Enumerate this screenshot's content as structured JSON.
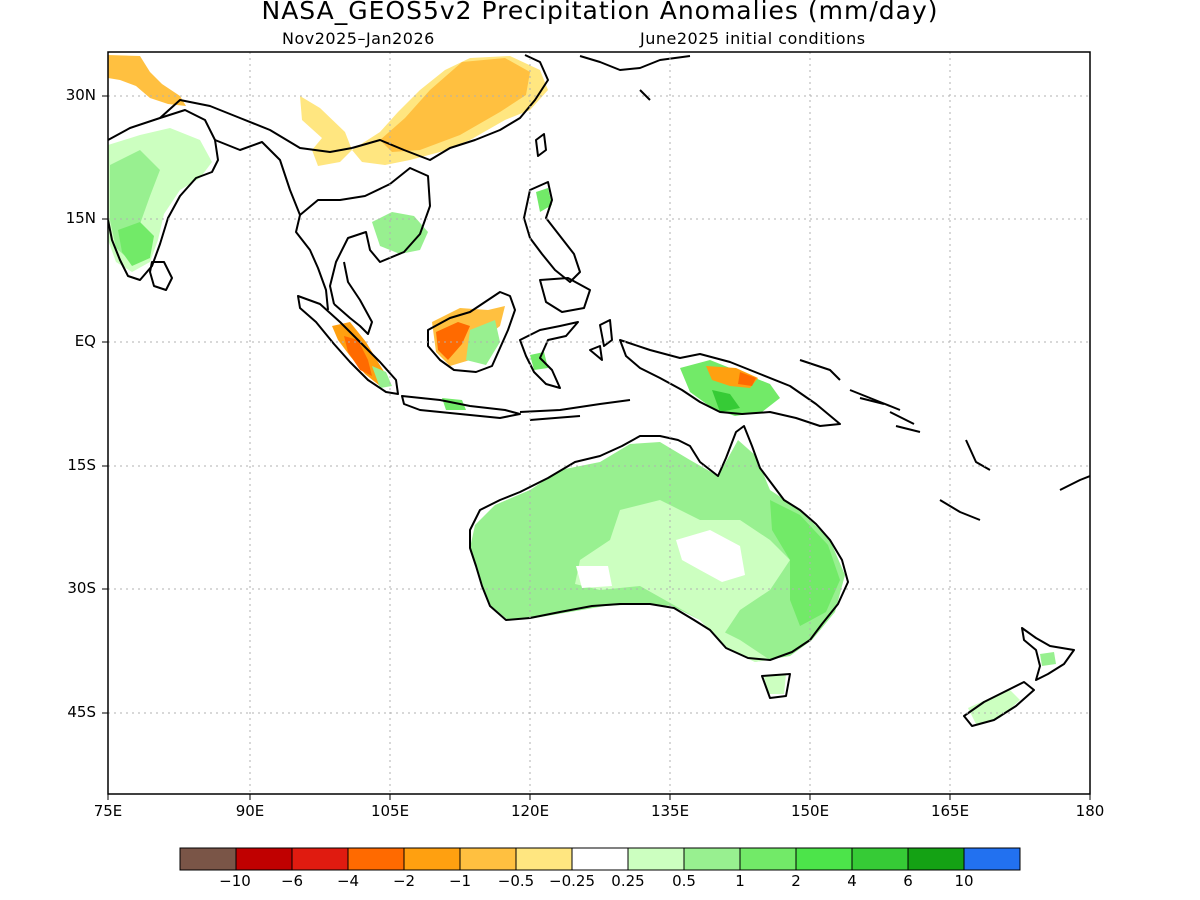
{
  "title": "NASA_GEOS5v2 Precipitation Anomalies (mm/day)",
  "subtitle_left": "Nov2025–Jan2026",
  "subtitle_right": "June2025 initial conditions",
  "map": {
    "projection": "lat-lon",
    "lon_range": [
      75,
      180
    ],
    "lat_range": [
      -52,
      31
    ],
    "lon_ticks": [
      "75E",
      "90E",
      "105E",
      "120E",
      "135E",
      "150E",
      "165E",
      "180"
    ],
    "lat_ticks": [
      "30N",
      "15N",
      "EQ",
      "15S",
      "30S",
      "45S"
    ],
    "grid": "dotted",
    "regions": [
      {
        "name": "Tibet/Himalaya west",
        "anomaly": "-1 to -0.5"
      },
      {
        "name": "South China",
        "anomaly": "-1 to -0.5"
      },
      {
        "name": "Sumatra",
        "anomaly": "-4 to -0.5"
      },
      {
        "name": "Borneo",
        "anomaly": "-4 to -0.5"
      },
      {
        "name": "New Guinea",
        "anomaly": "-2 to 1"
      },
      {
        "name": "India",
        "anomaly": "0.25 to 1"
      },
      {
        "name": "Indochina",
        "anomaly": "0.25 to 1"
      },
      {
        "name": "Australia",
        "anomaly": "0.25 to 1"
      },
      {
        "name": "New Zealand",
        "anomaly": "0.25 to 0.5"
      }
    ]
  },
  "colorbar": {
    "colors": [
      "#7a5547",
      "#c00000",
      "#e01b10",
      "#ff6a00",
      "#ffa010",
      "#ffc040",
      "#ffe680",
      "#ffffff",
      "#ccffc0",
      "#98f090",
      "#72ea68",
      "#4ce44a",
      "#36cb36",
      "#14a214",
      "#2271f0"
    ],
    "labels": [
      "−10",
      "−6",
      "−4",
      "−2",
      "−1",
      "−0.5",
      "−0.25",
      "0.25",
      "0.5",
      "1",
      "2",
      "4",
      "6",
      "10"
    ]
  }
}
